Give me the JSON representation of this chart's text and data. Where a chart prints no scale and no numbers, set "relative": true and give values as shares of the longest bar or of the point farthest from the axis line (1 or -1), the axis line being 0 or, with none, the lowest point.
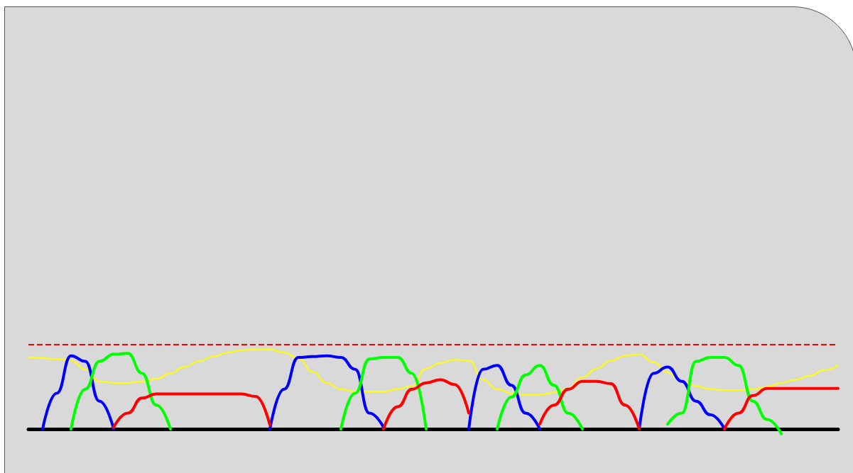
{
  "chart_data": {
    "type": "line",
    "relative": true,
    "categories": [
      null,
      null,
      null,
      null,
      null,
      null,
      null,
      null,
      null,
      null,
      null,
      null,
      null,
      null,
      null,
      null,
      null,
      null,
      null,
      null,
      null,
      null,
      null,
      null,
      null,
      null,
      null,
      null,
      null,
      null,
      null,
      null,
      null,
      null,
      null,
      null,
      null,
      null,
      null,
      null,
      null,
      null,
      null,
      null,
      null,
      null,
      null,
      null,
      null,
      null,
      null,
      null,
      null,
      null,
      null,
      null,
      null,
      null
    ],
    "series": [
      {
        "color": "#ffff00",
        "values": [
          0.9,
          0.89,
          0.88,
          0.86,
          0.75,
          0.6,
          0.58,
          0.58,
          0.6,
          0.63,
          0.7,
          0.78,
          0.85,
          0.91,
          0.96,
          0.99,
          1,
          1,
          0.96,
          0.89,
          0.72,
          0.58,
          0.5,
          0.47,
          0.47,
          0.47,
          0.5,
          0.54,
          0.76,
          0.83,
          0.87,
          0.86,
          0.62,
          0.5,
          0.45,
          0.43,
          0.43,
          0.46,
          0.51,
          0.65,
          0.76,
          0.86,
          0.92,
          0.94,
          0.84,
          0.71,
          0.6,
          0.54,
          0.5,
          0.49,
          0.49,
          0.5,
          0.53,
          0.58,
          0.62,
          0.67,
          0.74,
          0.8
        ]
      },
      {
        "color": "#0000ff",
        "values": [
          null,
          0,
          0.45,
          0.92,
          0.85,
          0.35,
          0,
          null,
          null,
          null,
          null,
          null,
          null,
          null,
          null,
          null,
          null,
          0,
          0.5,
          0.9,
          0.91,
          0.92,
          0.9,
          0.75,
          0.2,
          0.02,
          null,
          null,
          null,
          null,
          null,
          0,
          0.75,
          0.8,
          0.55,
          0.2,
          0,
          null,
          null,
          null,
          null,
          null,
          null,
          0,
          0.7,
          0.78,
          0.6,
          0.35,
          0.18,
          0,
          null,
          null,
          null,
          null,
          null,
          null,
          null,
          null
        ]
      },
      {
        "color": "#00ff00",
        "values": [
          null,
          null,
          null,
          0,
          0.5,
          0.85,
          0.94,
          0.95,
          0.7,
          0.3,
          0,
          null,
          null,
          null,
          null,
          null,
          null,
          null,
          null,
          null,
          null,
          null,
          0,
          0.45,
          0.88,
          0.9,
          0.9,
          0.7,
          0,
          null,
          null,
          null,
          null,
          0,
          0.4,
          0.68,
          0.8,
          0.55,
          0.2,
          0,
          null,
          null,
          null,
          null,
          null,
          0.06,
          0.2,
          0.85,
          0.9,
          0.9,
          0.8,
          0.35,
          0.12,
          -0.06,
          null,
          null,
          null,
          null
        ]
      },
      {
        "color": "#ff0000",
        "values": [
          null,
          null,
          null,
          null,
          null,
          null,
          0.02,
          0.2,
          0.39,
          0.44,
          0.44,
          0.44,
          0.44,
          0.44,
          0.44,
          0.44,
          0.41,
          0.05,
          null,
          null,
          null,
          null,
          null,
          null,
          null,
          0,
          0.28,
          0.5,
          0.58,
          0.62,
          0.56,
          0.2,
          null,
          null,
          null,
          null,
          0.06,
          0.3,
          0.5,
          0.6,
          0.6,
          0.57,
          0.3,
          0,
          null,
          null,
          null,
          null,
          null,
          0,
          0.2,
          0.42,
          0.51,
          0.51,
          0.51,
          0.51,
          0.51,
          0.51
        ]
      }
    ],
    "ref_lines": [
      {
        "axis": "y",
        "value": 1.06,
        "color": "#ff0000",
        "line_style": "dashed"
      }
    ],
    "grid": false,
    "marker": "none",
    "line_style": "solid"
  }
}
